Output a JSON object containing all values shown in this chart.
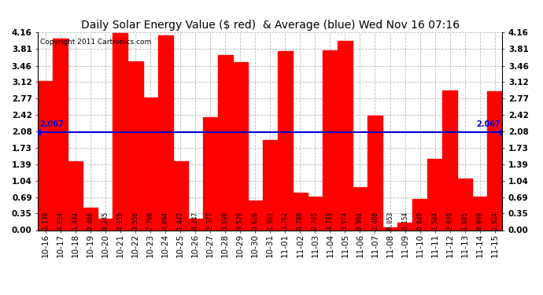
{
  "title": "Daily Solar Energy Value ($ red)  & Average (blue) Wed Nov 16 07:16",
  "copyright": "Copyright 2011 Cartronics.com",
  "categories": [
    "10-16",
    "10-17",
    "10-18",
    "10-19",
    "10-20",
    "10-21",
    "10-22",
    "10-23",
    "10-24",
    "10-25",
    "10-26",
    "10-27",
    "10-28",
    "10-29",
    "10-30",
    "10-31",
    "11-01",
    "11-02",
    "11-03",
    "11-04",
    "11-05",
    "11-06",
    "11-07",
    "11-08",
    "11-09",
    "11-10",
    "11-11",
    "11-12",
    "11-13",
    "11-14",
    "11-15"
  ],
  "values": [
    3.13,
    4.034,
    1.444,
    0.466,
    0.245,
    4.155,
    3.556,
    2.788,
    4.094,
    1.447,
    0.247,
    2.377,
    3.69,
    3.529,
    0.628,
    1.903,
    3.762,
    0.78,
    0.705,
    3.783,
    3.974,
    0.904,
    2.408,
    0.053,
    0.154,
    0.649,
    1.504,
    2.939,
    1.085,
    0.699,
    2.924
  ],
  "average": 2.067,
  "bar_color": "#FF0000",
  "avg_color": "#0000CC",
  "background_color": "#FFFFFF",
  "plot_bg_color": "#FFFFFF",
  "grid_color": "#BBBBBB",
  "ylim": [
    0,
    4.16
  ],
  "yticks": [
    0.0,
    0.35,
    0.69,
    1.04,
    1.39,
    1.73,
    2.08,
    2.42,
    2.77,
    3.12,
    3.46,
    3.81,
    4.16
  ],
  "title_fontsize": 10,
  "copyright_fontsize": 6.5,
  "bar_label_fontsize": 5.5,
  "tick_fontsize": 7.5,
  "avg_label_fontsize": 7
}
